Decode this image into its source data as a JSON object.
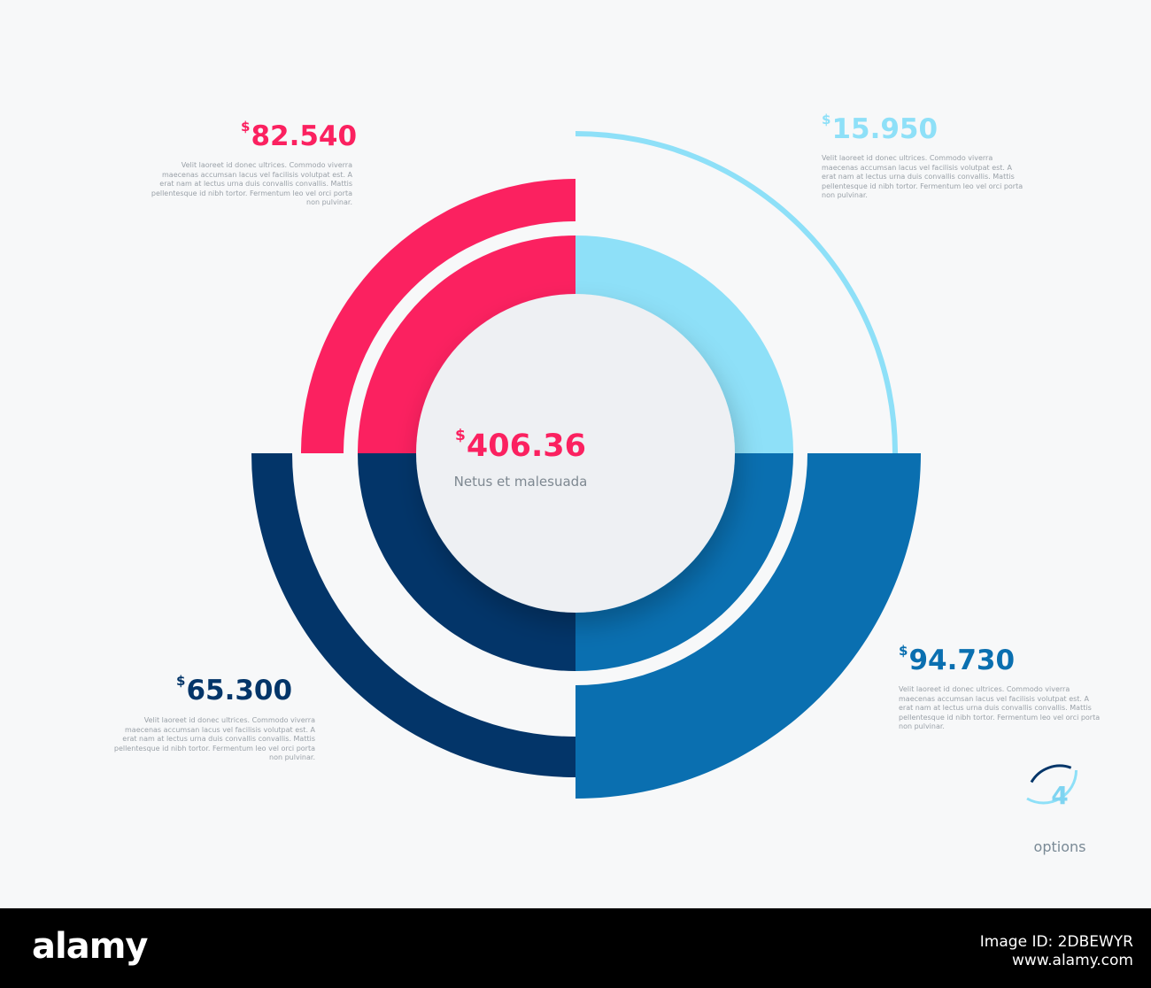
{
  "chart_data": {
    "type": "pie",
    "title": "",
    "center": {
      "currency": "$",
      "value": "406.36",
      "caption": "Netus et malesuada"
    },
    "segments": [
      {
        "name": "top-left",
        "currency": "$",
        "value": 82540,
        "label": "82.540",
        "color": "#fb2160",
        "description": "Velit laoreet id donec ultrices. Commodo viverra maecenas accumsan lacus vel facilisis volutpat est. A erat nam at lectus urna duis convallis convallis. Mattis pellentesque id nibh tortor. Fermentum leo vel orci porta non pulvinar."
      },
      {
        "name": "top-right",
        "currency": "$",
        "value": 15950,
        "label": "15.950",
        "color": "#8ee0f8",
        "description": "Velit laoreet id donec ultrices. Commodo viverra maecenas accumsan lacus vel facilisis volutpat est. A erat nam at lectus urna duis convallis convallis. Mattis pellentesque id nibh tortor. Fermentum leo vel orci porta non pulvinar."
      },
      {
        "name": "bottom-right",
        "currency": "$",
        "value": 94730,
        "label": "94.730",
        "color": "#0a6fb0",
        "description": "Velit laoreet id donec ultrices. Commodo viverra maecenas accumsan lacus vel facilisis volutpat est. A erat nam at lectus urna duis convallis convallis. Mattis pellentesque id nibh tortor. Fermentum leo vel orci porta non pulvinar."
      },
      {
        "name": "bottom-left",
        "currency": "$",
        "value": 65300,
        "label": "65.300",
        "color": "#033569",
        "description": "Velit laoreet id donec ultrices. Commodo viverra maecenas accumsan lacus vel facilisis volutpat est. A erat nam at lectus urna duis convallis convallis. Mattis pellentesque id nibh tortor. Fermentum leo vel orci porta non pulvinar."
      }
    ]
  },
  "options": {
    "count": "4",
    "label": "options"
  },
  "footer": {
    "brand": "alamy",
    "image_id_line1": "Image ID: 2DBEWYR",
    "image_id_line2": "www.alamy.com"
  }
}
